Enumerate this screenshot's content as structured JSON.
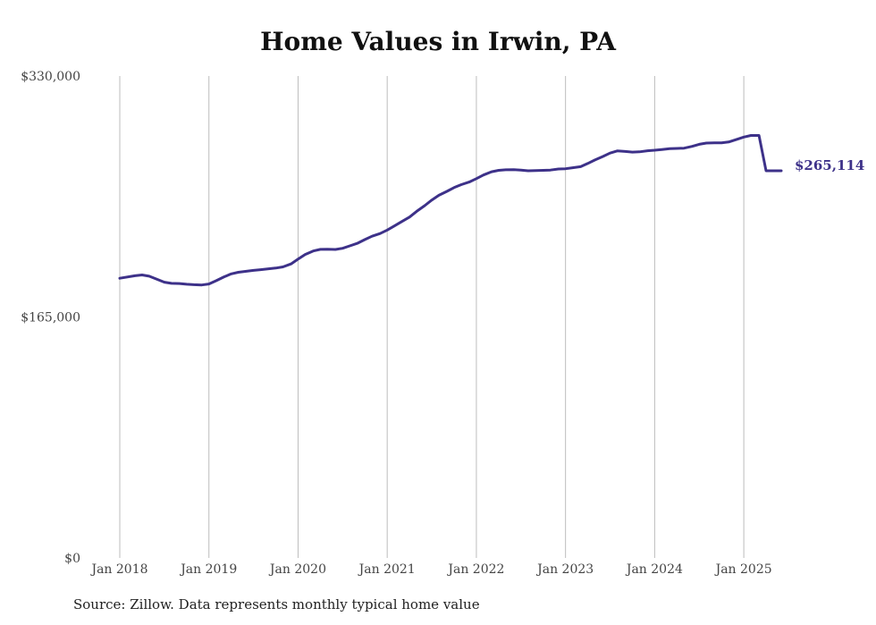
{
  "chart_data": {
    "type": "line",
    "title": "Home Values in Irwin, PA",
    "xlabel": "",
    "ylabel": "",
    "ylim": [
      0,
      330000
    ],
    "yticks": [
      {
        "value": 0,
        "label": "$0"
      },
      {
        "value": 165000,
        "label": "$165,000"
      },
      {
        "value": 330000,
        "label": "$330,000"
      }
    ],
    "xticks": [
      {
        "value": 2018.0,
        "label": "Jan 2018"
      },
      {
        "value": 2019.0,
        "label": "Jan 2019"
      },
      {
        "value": 2020.0,
        "label": "Jan 2020"
      },
      {
        "value": 2021.0,
        "label": "Jan 2021"
      },
      {
        "value": 2022.0,
        "label": "Jan 2022"
      },
      {
        "value": 2023.0,
        "label": "Jan 2023"
      },
      {
        "value": 2024.0,
        "label": "Jan 2024"
      },
      {
        "value": 2025.0,
        "label": "Jan 2025"
      }
    ],
    "xlim": [
      2018.0,
      2025.42
    ],
    "grid": "vertical",
    "color": "#3d3189",
    "end_label": "$265,114",
    "series": [
      {
        "x": [
          2018.0,
          2018.17,
          2018.25,
          2018.33,
          2018.5,
          2018.58,
          2018.67,
          2018.75,
          2018.83,
          2018.92,
          2019.0,
          2019.08,
          2019.17,
          2019.25,
          2019.33,
          2019.42,
          2019.5,
          2019.58,
          2019.67,
          2019.75,
          2019.83,
          2019.92,
          2020.0,
          2020.08,
          2020.17,
          2020.25,
          2020.33,
          2020.42,
          2020.5,
          2020.58,
          2020.67,
          2020.75,
          2020.83,
          2020.92,
          2021.0,
          2021.08,
          2021.17,
          2021.25,
          2021.33,
          2021.42,
          2021.5,
          2021.58,
          2021.67,
          2021.75,
          2021.83,
          2021.92,
          2022.0,
          2022.08,
          2022.17,
          2022.25,
          2022.33,
          2022.42,
          2022.5,
          2022.58,
          2022.67,
          2022.75,
          2022.83,
          2022.92,
          2023.0,
          2023.08,
          2023.17,
          2023.25,
          2023.33,
          2023.42,
          2023.5,
          2023.58,
          2023.67,
          2023.75,
          2023.83,
          2023.92,
          2024.0,
          2024.08,
          2024.17,
          2024.25,
          2024.33,
          2024.42,
          2024.5,
          2024.58,
          2024.67,
          2024.75,
          2024.83,
          2024.92,
          2025.0,
          2025.08,
          2025.17,
          2025.25,
          2025.33,
          2025.42
        ],
        "values": [
          191500,
          193200,
          193800,
          192900,
          188800,
          188000,
          187900,
          187400,
          187100,
          186900,
          187600,
          189800,
          192500,
          194500,
          195600,
          196300,
          196900,
          197400,
          198000,
          198500,
          199300,
          201300,
          204600,
          207800,
          210200,
          211300,
          211400,
          211200,
          212000,
          213700,
          215600,
          218000,
          220300,
          222100,
          224500,
          227300,
          230600,
          233400,
          237300,
          241200,
          245100,
          248300,
          251000,
          253600,
          255600,
          257400,
          259700,
          262200,
          264400,
          265400,
          265800,
          265900,
          265600,
          265100,
          265300,
          265400,
          265600,
          266300,
          266500,
          267200,
          267900,
          270100,
          272500,
          274900,
          277200,
          278700,
          278300,
          277900,
          278100,
          278800,
          279200,
          279700,
          280200,
          280400,
          280600,
          281800,
          283200,
          284100,
          284200,
          284200,
          284800,
          286600,
          288200,
          289300,
          289300,
          265114,
          265114,
          265114
        ]
      }
    ]
  },
  "source_text": "Source: Zillow. Data represents monthly typical home value"
}
